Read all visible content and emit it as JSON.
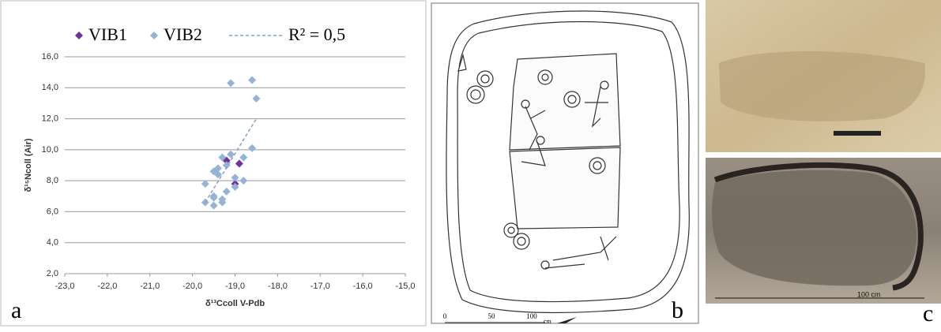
{
  "chart_data": {
    "type": "scatter",
    "x_label": "δ¹³Ccoll V-Pdb",
    "y_label": "δ¹⁵Ncoll (Air)",
    "xlim": [
      -23,
      -15
    ],
    "ylim": [
      2,
      16
    ],
    "xticks": [
      {
        "value": -23,
        "label": "-23,0"
      },
      {
        "value": -22,
        "label": "-22,0"
      },
      {
        "value": -21,
        "label": "-21,0"
      },
      {
        "value": -20,
        "label": "-20,0"
      },
      {
        "value": -19,
        "label": "-19,0"
      },
      {
        "value": -18,
        "label": "-18,0"
      },
      {
        "value": -17,
        "label": "-17,0"
      },
      {
        "value": -16,
        "label": "-16,0"
      },
      {
        "value": -15,
        "label": "-15,0"
      }
    ],
    "yticks": [
      {
        "value": 2,
        "label": "2,0"
      },
      {
        "value": 4,
        "label": "4,0"
      },
      {
        "value": 6,
        "label": "6,0"
      },
      {
        "value": 8,
        "label": "8,0"
      },
      {
        "value": 10,
        "label": "10,0"
      },
      {
        "value": 12,
        "label": "12,0"
      },
      {
        "value": 14,
        "label": "14,0"
      },
      {
        "value": 16,
        "label": "16,0"
      }
    ],
    "grid": true,
    "series": [
      {
        "name": "VIB1",
        "color": "#7030a0",
        "x": [
          -19.2,
          -18.9,
          -19.0
        ],
        "values": [
          9.3,
          9.1,
          7.8
        ]
      },
      {
        "name": "VIB2",
        "color": "#95b3d7",
        "x": [
          -19.1,
          -18.6,
          -18.5,
          -18.6,
          -18.8,
          -19.1,
          -19.2,
          -19.3,
          -19.4,
          -19.5,
          -19.4,
          -19.0,
          -18.8,
          -19.7,
          -19.2,
          -19.0,
          -19.5,
          -19.3,
          -19.5,
          -19.7,
          -19.5,
          -19.3
        ],
        "values": [
          14.3,
          14.5,
          13.3,
          10.1,
          9.5,
          9.7,
          9.0,
          9.5,
          8.8,
          8.6,
          8.4,
          8.2,
          8.0,
          7.8,
          7.3,
          7.6,
          7.0,
          6.8,
          6.9,
          6.6,
          6.4,
          6.6
        ]
      }
    ],
    "trendline": {
      "name": "R² = 0,5",
      "color": "#7f9fcf",
      "x": [
        -19.7,
        -18.5
      ],
      "values": [
        6.6,
        12.0
      ]
    }
  },
  "panels": {
    "a": "a",
    "b": "b",
    "c": "c"
  },
  "drawing": {
    "scale_labels": [
      "0",
      "50",
      "100",
      "cm"
    ]
  },
  "photos": {
    "scale_label": "100 cm"
  }
}
